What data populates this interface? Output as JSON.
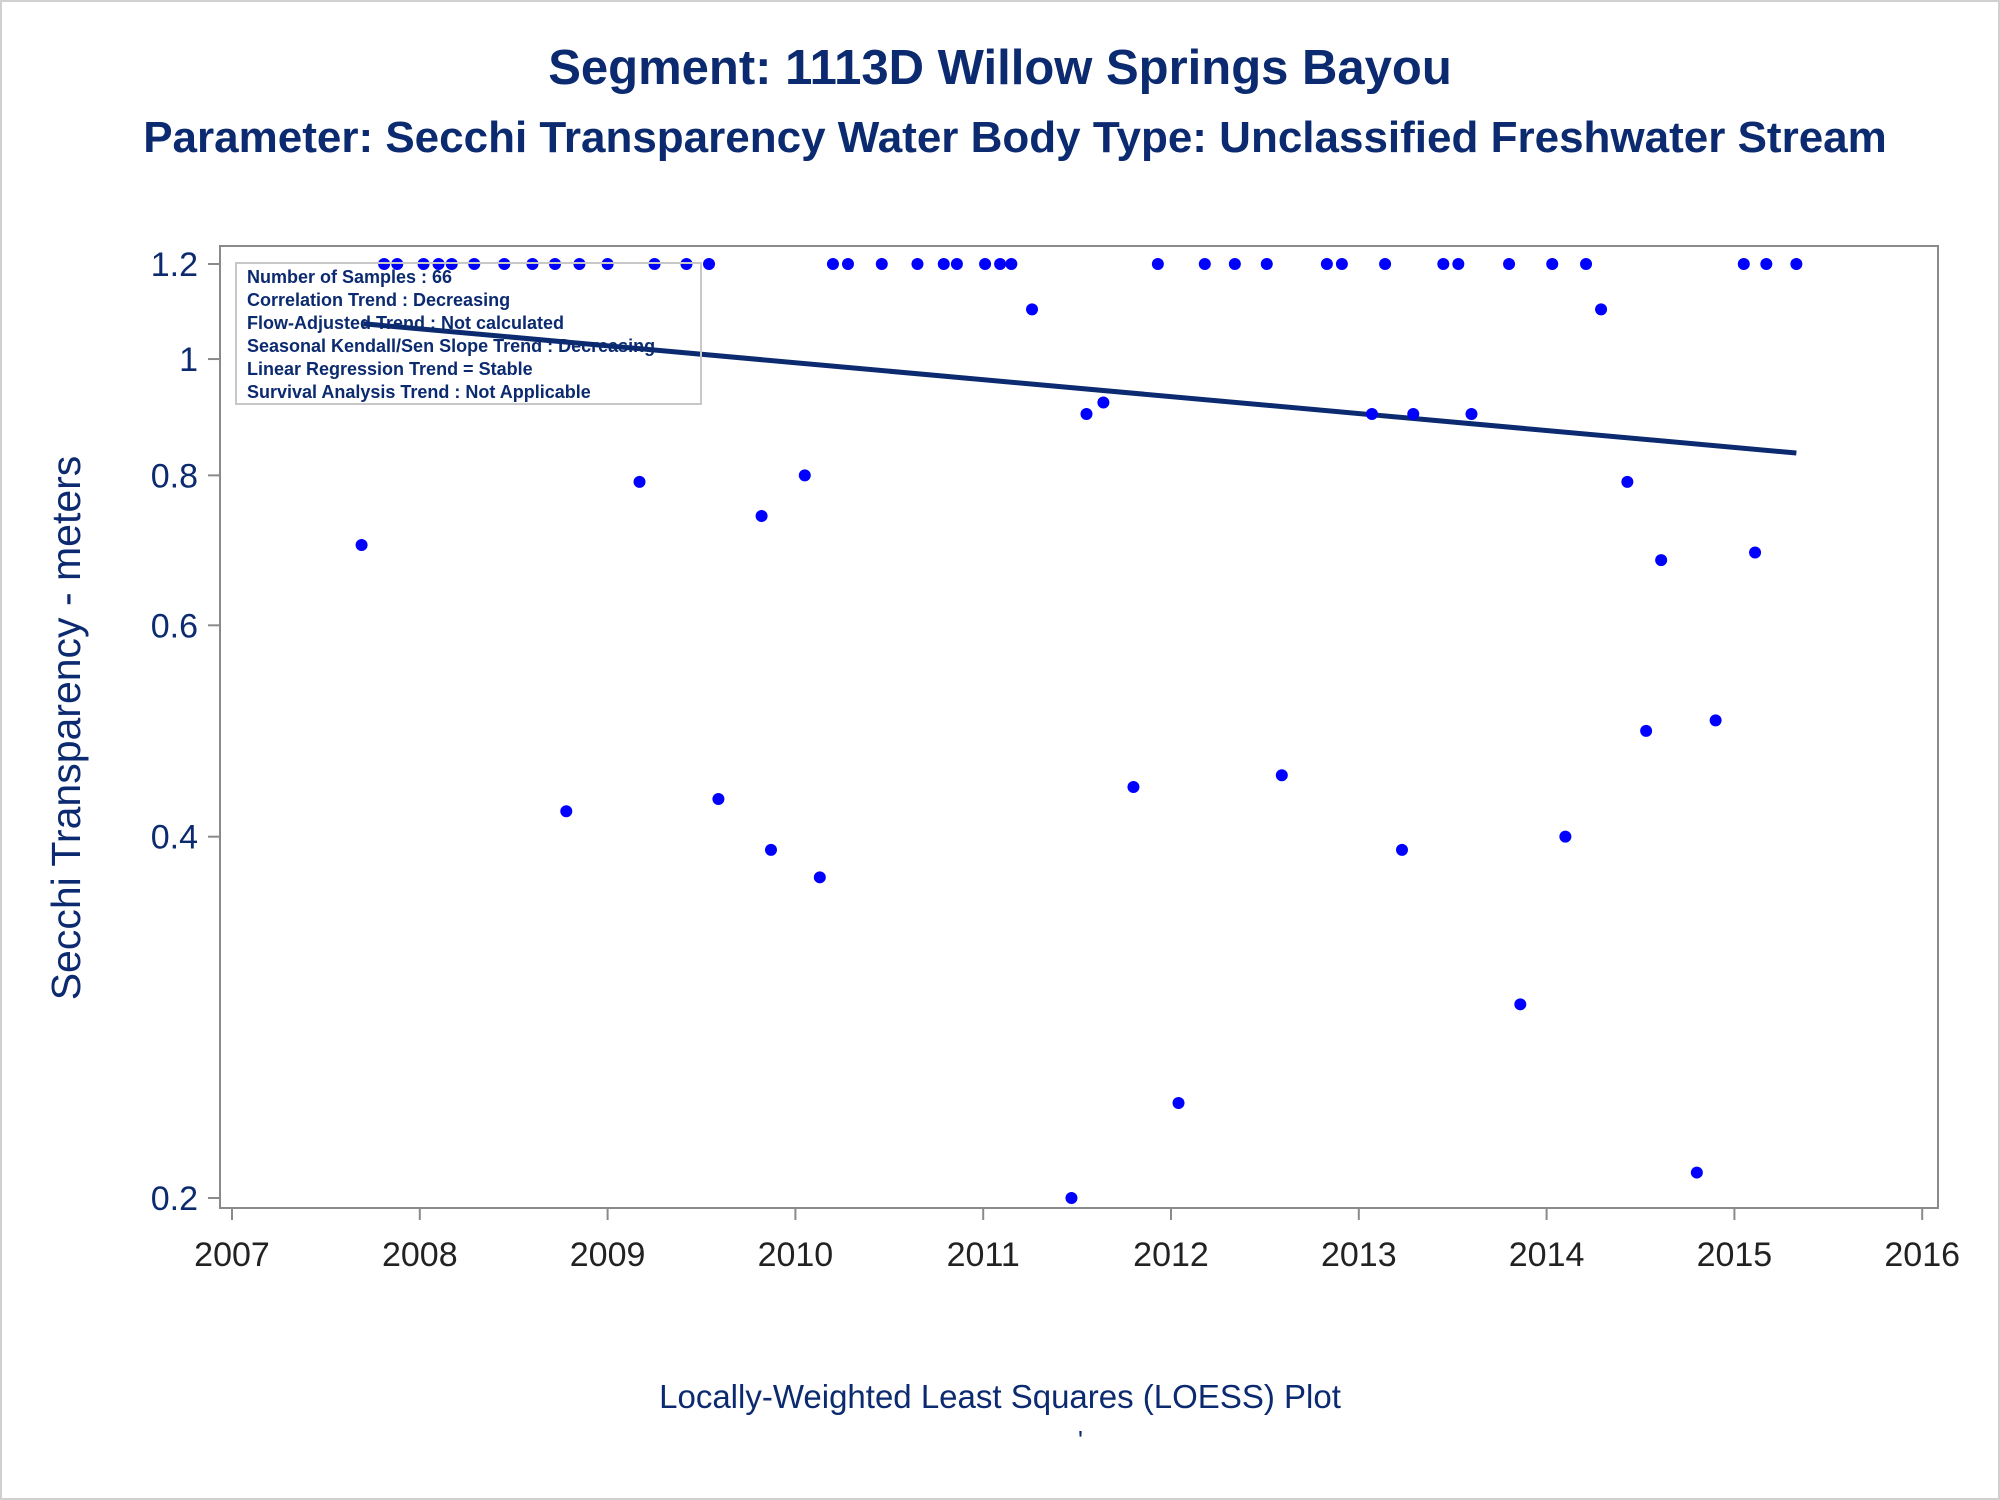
{
  "title": "Segment: 1113D  Willow Springs Bayou",
  "subtitle": "Parameter: Secchi Transparency   Water Body Type: Unclassified Freshwater Stream",
  "footnote": "Locally-Weighted Least Squares (LOESS) Plot",
  "footnote_mark": "'",
  "colors": {
    "text": "#0b2a6f",
    "points": "#0000ff",
    "line": "#0b2a6f",
    "axis": "#8a8a8a"
  },
  "legend_lines": [
    "Number of Samples : 66",
    "Correlation Trend : Decreasing",
    "Flow-Adjusted Trend : Not calculated",
    "Seasonal Kendall/Sen Slope Trend : Decreasing",
    "Linear Regression Trend = Stable",
    "Survival Analysis Trend : Not Applicable"
  ],
  "chart_data": {
    "type": "scatter",
    "title": "Segment: 1113D  Willow Springs Bayou",
    "subtitle": "Parameter: Secchi Transparency   Water Body Type: Unclassified Freshwater Stream",
    "xlabel": "",
    "ylabel": "Secchi Transparency - meters",
    "y_scale": "log",
    "xlim": [
      2007,
      2016
    ],
    "ylim": [
      0.195,
      1.24
    ],
    "x_ticks": [
      "2007",
      "2008",
      "2009",
      "2010",
      "2011",
      "2012",
      "2013",
      "2014",
      "2015",
      "2016"
    ],
    "y_ticks": [
      0.2,
      0.4,
      0.6,
      0.8,
      1,
      1.2
    ],
    "y_tick_labels": [
      "0.2",
      "0.4",
      "0.6",
      "0.8",
      "1",
      "1.2"
    ],
    "grid": false,
    "legend_placement": "top-left inset",
    "series": [
      {
        "type": "scatter",
        "x": [
          2007.69,
          2007.81,
          2007.88,
          2008.02,
          2008.1,
          2008.17,
          2008.29,
          2008.45,
          2008.6,
          2008.72,
          2008.85,
          2009.0,
          2009.25,
          2009.42,
          2009.54,
          2010.2,
          2010.28,
          2010.46,
          2010.65,
          2010.79,
          2010.86,
          2011.01,
          2011.09,
          2011.15,
          2011.26,
          2011.47,
          2011.55,
          2011.64,
          2011.8,
          2011.93,
          2012.04,
          2012.18,
          2012.34,
          2012.51,
          2012.59,
          2012.83,
          2012.91,
          2013.07,
          2013.14,
          2013.23,
          2013.29,
          2013.45,
          2013.53,
          2013.6,
          2013.8,
          2013.86,
          2014.03,
          2014.1,
          2014.21,
          2014.29,
          2014.43,
          2014.53,
          2014.61,
          2014.8,
          2014.9,
          2015.05,
          2015.11,
          2015.17,
          2015.33,
          2008.78,
          2009.17,
          2009.59,
          2009.82,
          2009.87,
          2010.05,
          2010.13
        ],
        "y": [
          0.7,
          1.2,
          1.2,
          1.2,
          1.2,
          1.2,
          1.2,
          1.2,
          1.2,
          1.2,
          1.2,
          1.2,
          1.2,
          1.2,
          1.2,
          1.2,
          1.2,
          1.2,
          1.2,
          1.2,
          1.2,
          1.2,
          1.2,
          1.2,
          1.1,
          0.2,
          0.9,
          0.92,
          0.44,
          1.2,
          0.24,
          1.2,
          1.2,
          1.2,
          0.45,
          1.2,
          1.2,
          0.9,
          1.2,
          0.39,
          0.9,
          1.2,
          1.2,
          0.9,
          1.2,
          0.29,
          1.2,
          0.4,
          1.2,
          1.1,
          0.79,
          0.49,
          0.68,
          0.21,
          0.5,
          1.2,
          0.69,
          1.2,
          1.2,
          0.42,
          0.79,
          0.43,
          0.74,
          0.39,
          0.8,
          0.37
        ]
      },
      {
        "type": "line",
        "x": [
          2007.7,
          2015.33
        ],
        "y": [
          1.07,
          0.835
        ]
      }
    ]
  }
}
